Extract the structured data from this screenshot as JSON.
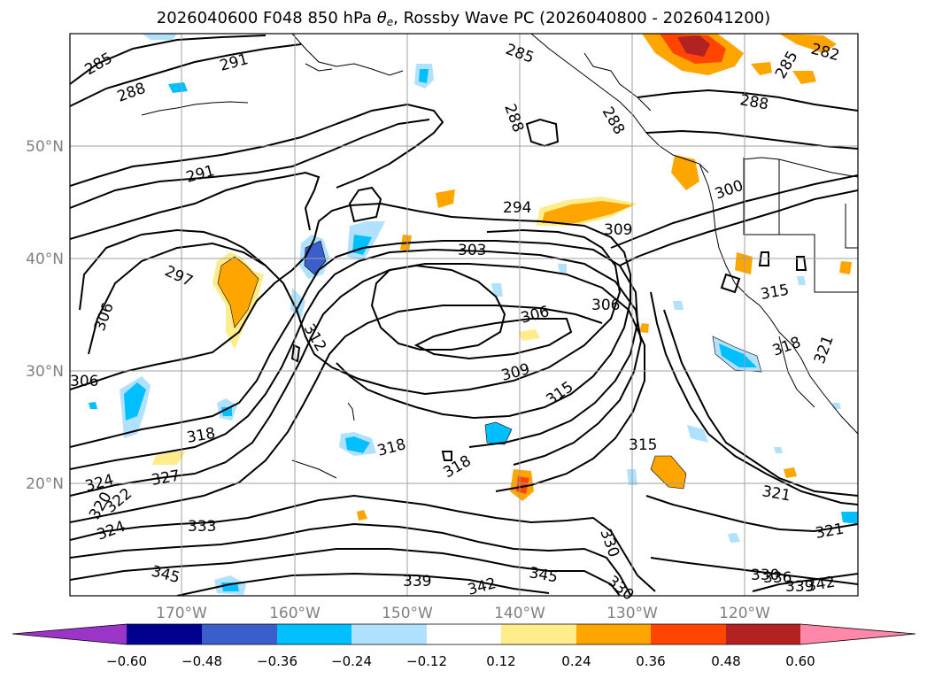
{
  "header": {
    "title_prefix": "2026040600 F048 850 hPa ",
    "title_theta": "θ",
    "title_sub": "e",
    "title_suffix": ", Rossby Wave PC (2026040800 - 2026041200)"
  },
  "map": {
    "lat_labels": [
      "50°N",
      "40°N",
      "30°N",
      "20°N"
    ],
    "lon_labels": [
      "170°W",
      "160°W",
      "150°W",
      "140°W",
      "130°W",
      "120°W"
    ],
    "contour_labels": [
      "285",
      "291",
      "288",
      "285",
      "288",
      "288",
      "282",
      "285",
      "288",
      "291",
      "294",
      "300",
      "303",
      "309",
      "297",
      "306",
      "306",
      "306",
      "312",
      "309",
      "315",
      "318",
      "315",
      "318",
      "318",
      "306",
      "324",
      "327",
      "320",
      "322",
      "324",
      "333",
      "330",
      "345",
      "339",
      "342",
      "345",
      "330",
      "321",
      "321",
      "330",
      "336",
      "339",
      "342",
      "315",
      "318",
      "321"
    ]
  },
  "colorbar": {
    "colors": [
      "#9b35c8",
      "#00008f",
      "#3a5fcd",
      "#00bfff",
      "#b0e2ff",
      "#ffffff",
      "#ffec8b",
      "#ffa500",
      "#ff4500",
      "#b22222",
      "#ff88aa"
    ],
    "ticks": [
      "−0.60",
      "−0.48",
      "−0.36",
      "−0.24",
      "−0.12",
      "0.12",
      "0.24",
      "0.36",
      "0.48",
      "0.60"
    ]
  }
}
